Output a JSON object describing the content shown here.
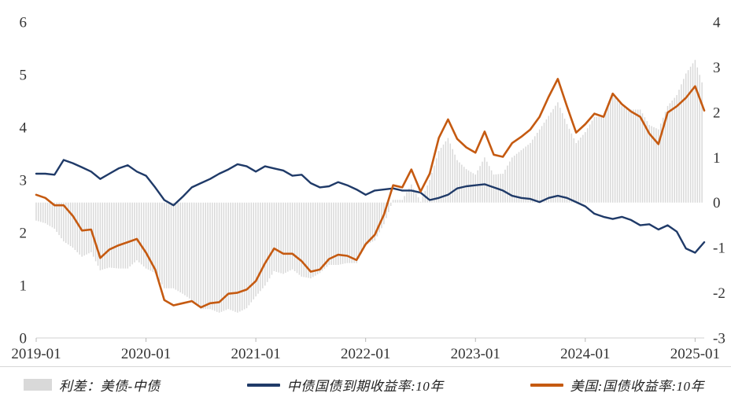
{
  "chart_data": {
    "type": "line",
    "title": "",
    "x_start": "2019-01",
    "x_end": "2025-02",
    "frequency": "monthly",
    "x_tick_labels": [
      "2019-01",
      "2020-01",
      "2021-01",
      "2022-01",
      "2023-01",
      "2024-01",
      "2025-01"
    ],
    "left_axis": {
      "min": 0,
      "max": 6,
      "ticks": [
        0,
        1,
        2,
        3,
        4,
        5,
        6
      ]
    },
    "right_axis": {
      "min": -3,
      "max": 4,
      "ticks": [
        -3,
        -2,
        -1,
        0,
        1,
        2,
        3,
        4
      ]
    },
    "grid": "off",
    "legend_position": "bottom",
    "colors": {
      "spread_bar": "#d9d9d9",
      "china_line": "#1f3a68",
      "us_line": "#c55a11",
      "axis_text": "#333333"
    },
    "series": [
      {
        "name": "利差：美债-中债",
        "type": "bar",
        "axis": "right",
        "color": "#d9d9d9",
        "derived": "us_minus_china"
      },
      {
        "name": "中债国债到期收益率:10年",
        "type": "line",
        "axis": "left",
        "color": "#1f3a68",
        "values": [
          3.12,
          3.12,
          3.1,
          3.38,
          3.32,
          3.24,
          3.16,
          3.02,
          3.12,
          3.22,
          3.28,
          3.16,
          3.08,
          2.86,
          2.62,
          2.52,
          2.68,
          2.86,
          2.94,
          3.02,
          3.12,
          3.2,
          3.3,
          3.26,
          3.16,
          3.26,
          3.22,
          3.18,
          3.08,
          3.1,
          2.94,
          2.86,
          2.88,
          2.96,
          2.9,
          2.82,
          2.72,
          2.8,
          2.82,
          2.84,
          2.8,
          2.8,
          2.76,
          2.62,
          2.66,
          2.72,
          2.84,
          2.88,
          2.9,
          2.92,
          2.86,
          2.8,
          2.7,
          2.66,
          2.64,
          2.58,
          2.66,
          2.7,
          2.66,
          2.58,
          2.5,
          2.36,
          2.3,
          2.26,
          2.3,
          2.24,
          2.14,
          2.16,
          2.06,
          2.14,
          2.02,
          1.7,
          1.62,
          1.82
        ]
      },
      {
        "name": "美国:国债收益率:10年",
        "type": "line",
        "axis": "left",
        "color": "#c55a11",
        "values": [
          2.72,
          2.66,
          2.52,
          2.52,
          2.32,
          2.04,
          2.06,
          1.52,
          1.68,
          1.76,
          1.82,
          1.88,
          1.62,
          1.3,
          0.72,
          0.62,
          0.66,
          0.7,
          0.58,
          0.66,
          0.68,
          0.84,
          0.86,
          0.92,
          1.08,
          1.42,
          1.7,
          1.6,
          1.6,
          1.46,
          1.26,
          1.3,
          1.5,
          1.58,
          1.56,
          1.48,
          1.78,
          1.96,
          2.34,
          2.9,
          2.86,
          3.2,
          2.78,
          3.12,
          3.8,
          4.15,
          3.78,
          3.62,
          3.52,
          3.92,
          3.48,
          3.44,
          3.7,
          3.82,
          3.96,
          4.2,
          4.58,
          4.92,
          4.4,
          3.9,
          4.06,
          4.26,
          4.2,
          4.64,
          4.44,
          4.3,
          4.2,
          3.88,
          3.68,
          4.28,
          4.4,
          4.56,
          4.78,
          4.32
        ]
      }
    ]
  }
}
